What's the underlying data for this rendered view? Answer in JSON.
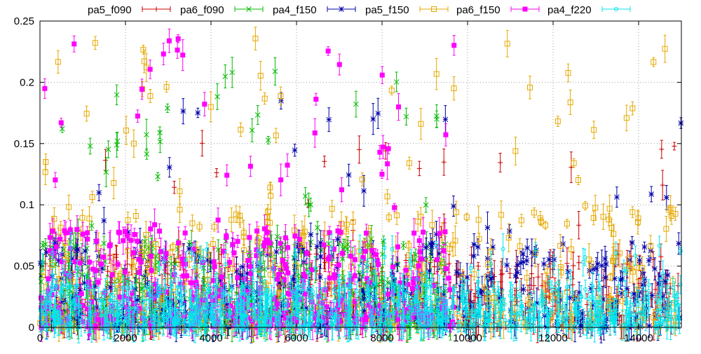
{
  "chart_data": {
    "type": "scatter",
    "title": "",
    "xlabel": "",
    "ylabel": "",
    "xlim": [
      0,
      15000
    ],
    "ylim": [
      0,
      0.25
    ],
    "x_ticks": [
      0,
      2000,
      4000,
      6000,
      8000,
      10000,
      12000,
      14000
    ],
    "y_ticks": [
      0,
      0.05,
      0.1,
      0.15,
      0.2,
      0.25
    ],
    "x_tick_labels": [
      "0",
      "2000",
      "4000",
      "6000",
      "8000",
      "10000",
      "12000",
      "14000"
    ],
    "y_tick_labels": [
      "0",
      "0.05",
      "0.1",
      "0.15",
      "0.2",
      "0.25"
    ],
    "grid": true,
    "grid_style": "dotted",
    "legend_position": "top",
    "error_bars": true,
    "series": [
      {
        "name": "pa5_f090",
        "color": "#cc0000",
        "marker": "plus",
        "x_range": [
          0,
          15000
        ],
        "y_typical": [
          0.0,
          0.06
        ],
        "y_max": 0.155
      },
      {
        "name": "pa6_f090",
        "color": "#00bb00",
        "marker": "x",
        "x_range": [
          0,
          9700
        ],
        "y_typical": [
          0.0,
          0.07
        ],
        "y_max": 0.222
      },
      {
        "name": "pa4_f150",
        "color": "#0000aa",
        "marker": "asterisk",
        "x_range": [
          0,
          15000
        ],
        "y_typical": [
          0.0,
          0.07
        ],
        "y_max": 0.19
      },
      {
        "name": "pa5_f150",
        "color": "#e6a800",
        "marker": "open-square",
        "x_range": [
          0,
          15000
        ],
        "y_typical": [
          0.0,
          0.1
        ],
        "y_max": 0.238
      },
      {
        "name": "pa6_f150",
        "color": "#ff00ff",
        "marker": "filled-square",
        "x_range": [
          0,
          9700
        ],
        "y_typical": [
          0.0,
          0.08
        ],
        "y_max": 0.241
      },
      {
        "name": "pa4_f220",
        "color": "#00e5ee",
        "marker": "open-circle",
        "x_range": [
          0,
          15000
        ],
        "y_typical": [
          0.0,
          0.035
        ],
        "y_max": 0.068
      }
    ]
  }
}
